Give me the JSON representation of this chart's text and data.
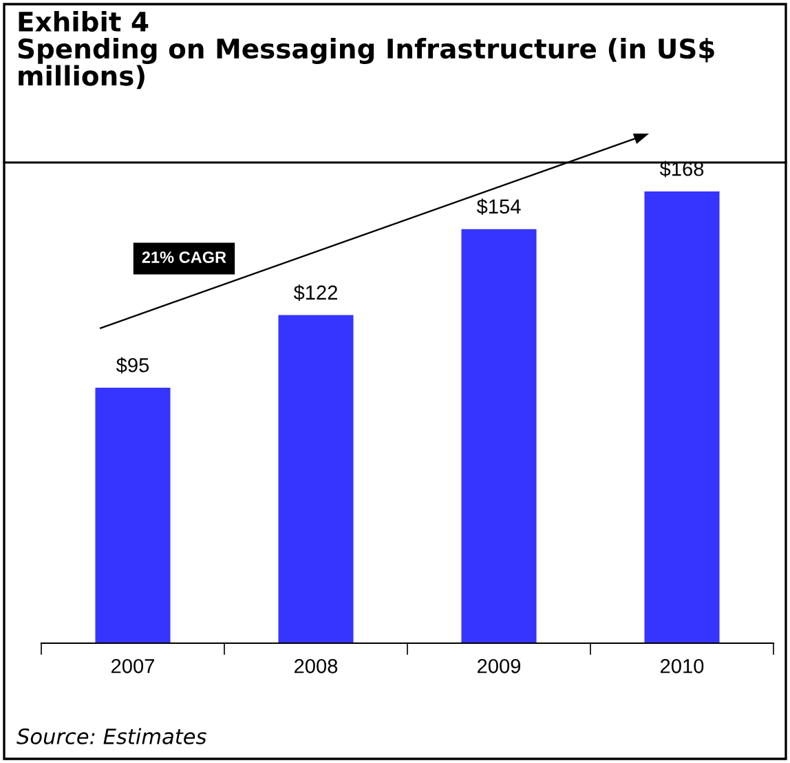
{
  "chart_data": {
    "type": "bar",
    "title": "Exhibit 4\nSpending on Messaging Infrastructure (in US$ millions)",
    "categories": [
      "2007",
      "2008",
      "2009",
      "2010"
    ],
    "values": [
      95,
      122,
      154,
      168
    ],
    "value_labels": [
      "$95",
      "$122",
      "$154",
      "$168"
    ],
    "color": "#3535ff",
    "grid": false,
    "legend": false,
    "annotations": [
      "21% CAGR",
      "Source: Estimates"
    ]
  }
}
